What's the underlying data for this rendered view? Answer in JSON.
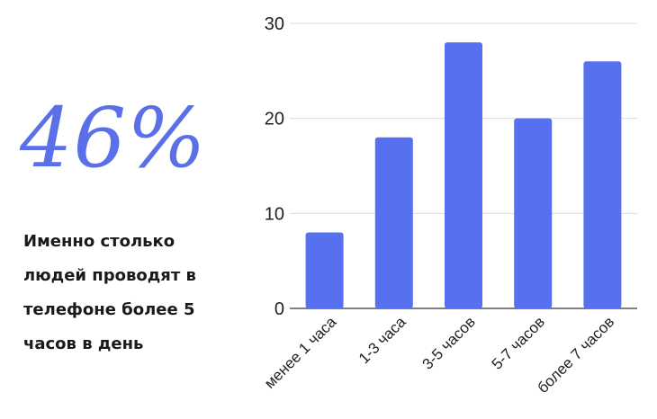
{
  "stat": {
    "value": "46%",
    "caption_lines": [
      "Именно столько",
      "людей проводят в",
      "телефоне более 5",
      "часов в день"
    ]
  },
  "colors": {
    "bar": "#5670f0",
    "accent": "#5b6fe8",
    "grid": "#dcdcdc",
    "axis": "#555555"
  },
  "chart_data": {
    "type": "bar",
    "categories": [
      "менее 1 часа",
      "1-3 часа",
      "3-5 часов",
      "5-7 часов",
      "более 7 часов"
    ],
    "values": [
      8,
      18,
      28,
      20,
      26
    ],
    "yticks": [
      0,
      10,
      20,
      30
    ],
    "ylim": [
      0,
      30
    ],
    "grid": true,
    "title": "",
    "xlabel": "",
    "ylabel": ""
  }
}
